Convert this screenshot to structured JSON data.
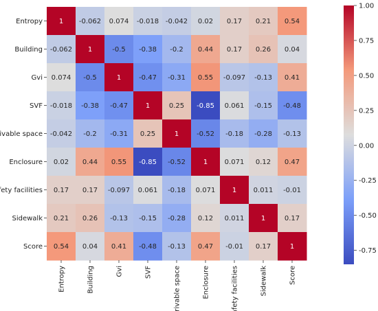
{
  "chart_data": {
    "type": "heatmap",
    "title": "",
    "xlabel": "",
    "ylabel": "",
    "rows": [
      "Entropy",
      "Building",
      "Gvi",
      "SVF",
      "Drivable space",
      "Enclosure",
      "Safety facilities",
      "Sidewalk",
      "Score"
    ],
    "cols": [
      "Entropy",
      "Building",
      "Gvi",
      "SVF",
      "Drivable space",
      "Enclosure",
      "Safety facilities",
      "Sidewalk",
      "Score"
    ],
    "values": [
      [
        1,
        -0.062,
        0.074,
        -0.018,
        -0.042,
        0.02,
        0.17,
        0.21,
        0.54
      ],
      [
        -0.062,
        1,
        -0.5,
        -0.38,
        -0.2,
        0.44,
        0.17,
        0.26,
        0.04
      ],
      [
        0.074,
        -0.5,
        1,
        -0.47,
        -0.31,
        0.55,
        -0.097,
        -0.13,
        0.41
      ],
      [
        -0.018,
        -0.38,
        -0.47,
        1,
        0.25,
        -0.85,
        0.061,
        -0.15,
        -0.48
      ],
      [
        -0.042,
        -0.2,
        -0.31,
        0.25,
        1,
        -0.52,
        -0.18,
        -0.28,
        -0.13
      ],
      [
        0.02,
        0.44,
        0.55,
        -0.85,
        -0.52,
        1,
        0.071,
        0.12,
        0.47
      ],
      [
        0.17,
        0.17,
        -0.097,
        0.061,
        -0.18,
        0.071,
        1,
        0.011,
        -0.01
      ],
      [
        0.21,
        0.26,
        -0.13,
        -0.15,
        -0.28,
        0.12,
        0.011,
        1,
        0.17
      ],
      [
        0.54,
        0.04,
        0.41,
        -0.48,
        -0.13,
        0.47,
        -0.01,
        0.17,
        1
      ]
    ],
    "labels": [
      [
        "1",
        "-0.062",
        "0.074",
        "-0.018",
        "-0.042",
        "0.02",
        "0.17",
        "0.21",
        "0.54"
      ],
      [
        "-0.062",
        "1",
        "-0.5",
        "-0.38",
        "-0.2",
        "0.44",
        "0.17",
        "0.26",
        "0.04"
      ],
      [
        "0.074",
        "-0.5",
        "1",
        "-0.47",
        "-0.31",
        "0.55",
        "-0.097",
        "-0.13",
        "0.41"
      ],
      [
        "-0.018",
        "-0.38",
        "-0.47",
        "1",
        "0.25",
        "-0.85",
        "0.061",
        "-0.15",
        "-0.48"
      ],
      [
        "-0.042",
        "-0.2",
        "-0.31",
        "0.25",
        "1",
        "-0.52",
        "-0.18",
        "-0.28",
        "-0.13"
      ],
      [
        "0.02",
        "0.44",
        "0.55",
        "-0.85",
        "-0.52",
        "1",
        "0.071",
        "0.12",
        "0.47"
      ],
      [
        "0.17",
        "0.17",
        "-0.097",
        "0.061",
        "-0.18",
        "0.071",
        "1",
        "0.011",
        "-0.01"
      ],
      [
        "0.21",
        "0.26",
        "-0.13",
        "-0.15",
        "-0.28",
        "0.12",
        "0.011",
        "1",
        "0.17"
      ],
      [
        "0.54",
        "0.04",
        "0.41",
        "-0.48",
        "-0.13",
        "0.47",
        "-0.01",
        "0.17",
        "1"
      ]
    ],
    "colorscale": "coolwarm",
    "vmin": -0.85,
    "vmax": 1.0,
    "colorbar": {
      "ticks": [
        1.0,
        0.75,
        0.5,
        0.25,
        0.0,
        -0.25,
        -0.5,
        -0.75
      ],
      "tick_labels": [
        "1.00",
        "0.75",
        "0.50",
        "0.25",
        "0.00",
        "-0.25",
        "-0.50",
        "-0.75"
      ],
      "placement": "right"
    },
    "grid": false,
    "legend": "none"
  }
}
